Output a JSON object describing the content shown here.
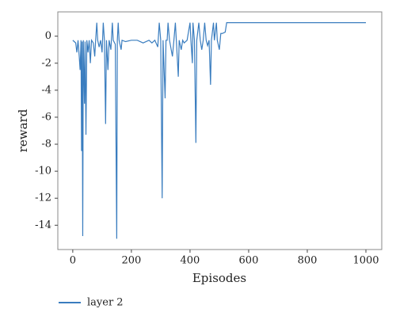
{
  "chart_data": {
    "type": "line",
    "x_label": "Episodes",
    "y_label": "reward",
    "x": [
      0,
      5,
      10,
      14,
      18,
      22,
      25,
      28,
      30,
      32,
      34,
      36,
      40,
      42,
      45,
      48,
      52,
      56,
      60,
      64,
      70,
      75,
      78,
      82,
      85,
      90,
      95,
      100,
      104,
      108,
      112,
      115,
      120,
      124,
      130,
      135,
      138,
      145,
      150,
      152,
      155,
      158,
      165,
      168,
      180,
      200,
      220,
      240,
      260,
      270,
      280,
      290,
      295,
      300,
      305,
      308,
      315,
      318,
      322,
      325,
      330,
      340,
      345,
      350,
      360,
      363,
      370,
      375,
      380,
      390,
      400,
      403,
      408,
      410,
      415,
      420,
      423,
      430,
      435,
      440,
      445,
      450,
      455,
      460,
      465,
      470,
      473,
      480,
      483,
      490,
      493,
      500,
      505,
      510,
      520,
      525,
      530,
      700,
      1000
    ],
    "series": [
      {
        "name": "layer 2",
        "color": "#3a7dbf",
        "values": [
          -0.3,
          -0.4,
          -0.5,
          -1.2,
          -0.3,
          -1.5,
          -2.5,
          -0.3,
          -8.5,
          -0.4,
          -14.8,
          -0.3,
          -5,
          -0.4,
          -7.3,
          -0.3,
          -1.2,
          -0.3,
          -2,
          -0.3,
          -0.5,
          -1.5,
          -0.3,
          1,
          -0.3,
          -0.8,
          -0.3,
          -1.2,
          1,
          -0.3,
          -6.5,
          -0.3,
          -2.5,
          -0.3,
          -1,
          1,
          -0.3,
          -0.6,
          -15,
          -0.3,
          1,
          -0.3,
          -1,
          -0.3,
          -0.4,
          -0.3,
          -0.3,
          -0.5,
          -0.3,
          -0.5,
          -0.3,
          -0.8,
          1,
          -0.3,
          -12,
          -0.3,
          -4.6,
          -0.3,
          -0.3,
          1,
          -0.3,
          -1.5,
          -0.3,
          1,
          -3,
          -0.3,
          -1,
          -0.3,
          -0.5,
          -0.3,
          1,
          -0.3,
          -2,
          1,
          -0.3,
          -7.9,
          -0.3,
          1,
          -0.3,
          -1,
          -0.3,
          1,
          -0.3,
          -0.7,
          -0.3,
          -3.6,
          -0.3,
          1,
          -0.3,
          1,
          -0.3,
          -1,
          0.2,
          0.2,
          0.3,
          1,
          1,
          1,
          1
        ]
      }
    ],
    "xlim": [
      -51,
      1054
    ],
    "ylim": [
      -15.8,
      1.8
    ],
    "xticks": [
      0,
      200,
      400,
      600,
      800,
      1000
    ],
    "yticks": [
      0,
      -2,
      -4,
      -6,
      -8,
      -10,
      -12,
      -14
    ],
    "legend": "bottom-left"
  }
}
